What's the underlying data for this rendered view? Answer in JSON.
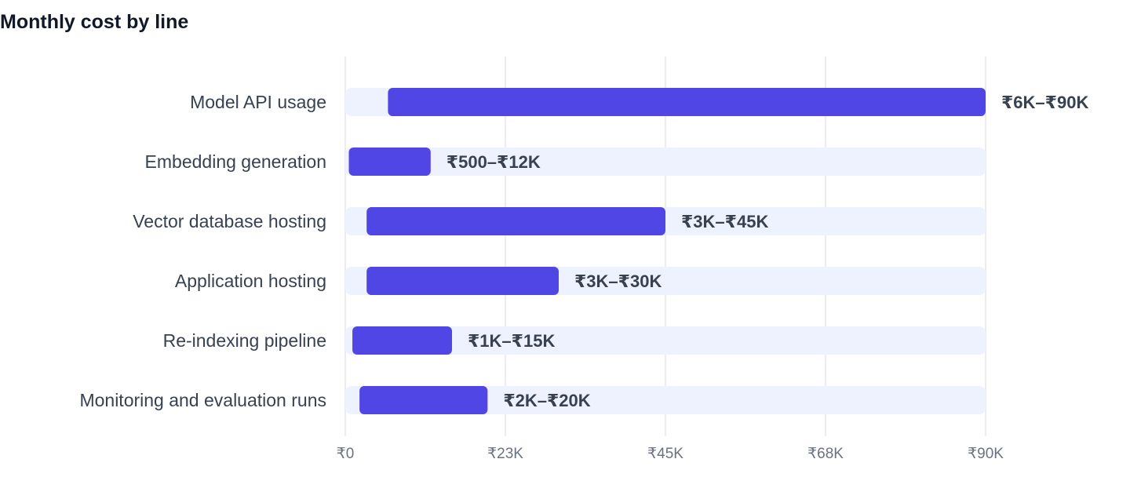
{
  "chart_data": {
    "type": "bar",
    "orientation": "horizontal",
    "subtype": "floating-range",
    "title": "Monthly cost by line",
    "categories": [
      "Model API usage",
      "Embedding generation",
      "Vector database hosting",
      "Application hosting",
      "Re-indexing pipeline",
      "Monitoring and evaluation runs"
    ],
    "series": [
      {
        "low": [
          6000,
          500,
          3000,
          3000,
          1000,
          2000
        ],
        "high": [
          90000,
          12000,
          45000,
          30000,
          15000,
          20000
        ]
      }
    ],
    "data_labels": [
      "₹6K–₹90K",
      "₹500–₹12K",
      "₹3K–₹45K",
      "₹3K–₹30K",
      "₹1K–₹15K",
      "₹2K–₹20K"
    ],
    "x_ticks": [
      0,
      22500,
      45000,
      67500,
      90000
    ],
    "x_tick_labels": [
      "₹0",
      "₹23K",
      "₹45K",
      "₹68K",
      "₹90K"
    ],
    "xlim": [
      0,
      90000
    ],
    "xlabel": "",
    "ylabel": "",
    "grid": "vertical",
    "legend": "none",
    "colors": {
      "bar": "#4f46e5",
      "track": "#eef2ff",
      "grid": "#e5e7eb",
      "title": "#111827",
      "label": "#374151",
      "tick": "#6b7280"
    }
  }
}
